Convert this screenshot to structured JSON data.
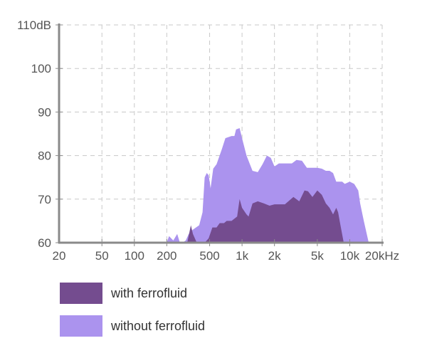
{
  "chart_data": {
    "type": "area",
    "x_scale": "log",
    "y_unit": "dB",
    "x_unit": "Hz",
    "xlim": [
      20,
      20000
    ],
    "ylim": [
      59,
      110
    ],
    "grid": true,
    "legend_position": "bottom-left",
    "x_ticks": [
      {
        "value": 20,
        "label": "20"
      },
      {
        "value": 50,
        "label": "50"
      },
      {
        "value": 100,
        "label": "100"
      },
      {
        "value": 200,
        "label": "200"
      },
      {
        "value": 500,
        "label": "500"
      },
      {
        "value": 1000,
        "label": "1k"
      },
      {
        "value": 2000,
        "label": "2k"
      },
      {
        "value": 5000,
        "label": "5k"
      },
      {
        "value": 10000,
        "label": "10k"
      },
      {
        "value": 20000,
        "label": "20kHz"
      }
    ],
    "y_ticks": [
      {
        "value": 60,
        "label": "60"
      },
      {
        "value": 70,
        "label": "70"
      },
      {
        "value": 80,
        "label": "80"
      },
      {
        "value": 90,
        "label": "90"
      },
      {
        "value": 100,
        "label": "100"
      },
      {
        "value": 110,
        "label": "110dB"
      }
    ],
    "series": [
      {
        "name": "without ferrofluid",
        "color": "#ab93ee",
        "points": [
          [
            200,
            59
          ],
          [
            210,
            61.5
          ],
          [
            230,
            60.5
          ],
          [
            250,
            62
          ],
          [
            265,
            59.5
          ],
          [
            280,
            59.5
          ],
          [
            300,
            60.5
          ],
          [
            320,
            62
          ],
          [
            350,
            63
          ],
          [
            400,
            64
          ],
          [
            430,
            67
          ],
          [
            450,
            75
          ],
          [
            470,
            76
          ],
          [
            490,
            75.5
          ],
          [
            510,
            72.5
          ],
          [
            540,
            77
          ],
          [
            580,
            78
          ],
          [
            650,
            81.5
          ],
          [
            700,
            84
          ],
          [
            800,
            84.5
          ],
          [
            850,
            84.5
          ],
          [
            880,
            86
          ],
          [
            950,
            86.3
          ],
          [
            1000,
            84
          ],
          [
            1100,
            80
          ],
          [
            1250,
            76.5
          ],
          [
            1400,
            76.2
          ],
          [
            1550,
            78
          ],
          [
            1700,
            80
          ],
          [
            1850,
            79.5
          ],
          [
            2000,
            77.5
          ],
          [
            2200,
            78.2
          ],
          [
            2500,
            78.2
          ],
          [
            2900,
            78.2
          ],
          [
            3200,
            79
          ],
          [
            3600,
            78.8
          ],
          [
            4000,
            77.2
          ],
          [
            5000,
            77.2
          ],
          [
            5500,
            77
          ],
          [
            6000,
            76.5
          ],
          [
            6500,
            76.5
          ],
          [
            7000,
            76
          ],
          [
            7500,
            74
          ],
          [
            8500,
            74
          ],
          [
            9000,
            73.5
          ],
          [
            10000,
            74
          ],
          [
            11000,
            73.5
          ],
          [
            12000,
            72
          ],
          [
            12500,
            69
          ],
          [
            13500,
            65
          ],
          [
            15000,
            59
          ]
        ]
      },
      {
        "name": "with ferrofluid",
        "color": "#744c8f",
        "points": [
          [
            310,
            59
          ],
          [
            335,
            64
          ],
          [
            350,
            62
          ],
          [
            380,
            59.5
          ],
          [
            450,
            59.5
          ],
          [
            490,
            61
          ],
          [
            530,
            63.5
          ],
          [
            580,
            63.5
          ],
          [
            620,
            64.5
          ],
          [
            680,
            64.5
          ],
          [
            720,
            65
          ],
          [
            800,
            65
          ],
          [
            900,
            66
          ],
          [
            950,
            70
          ],
          [
            1000,
            68
          ],
          [
            1100,
            66.5
          ],
          [
            1150,
            66
          ],
          [
            1250,
            69
          ],
          [
            1400,
            69.5
          ],
          [
            1600,
            69
          ],
          [
            1800,
            68.5
          ],
          [
            2000,
            68.8
          ],
          [
            2500,
            68.8
          ],
          [
            3000,
            70.5
          ],
          [
            3400,
            69.5
          ],
          [
            3800,
            72
          ],
          [
            4100,
            71.8
          ],
          [
            4500,
            70.5
          ],
          [
            5000,
            72
          ],
          [
            5500,
            71
          ],
          [
            6000,
            69
          ],
          [
            6500,
            68
          ],
          [
            7000,
            66.5
          ],
          [
            7500,
            68
          ],
          [
            7800,
            67
          ],
          [
            8200,
            64
          ],
          [
            8800,
            59
          ]
        ]
      }
    ],
    "legend": [
      {
        "label": "with ferrofluid",
        "color": "#744c8f"
      },
      {
        "label": "without ferrofluid",
        "color": "#ab93ee"
      }
    ]
  }
}
